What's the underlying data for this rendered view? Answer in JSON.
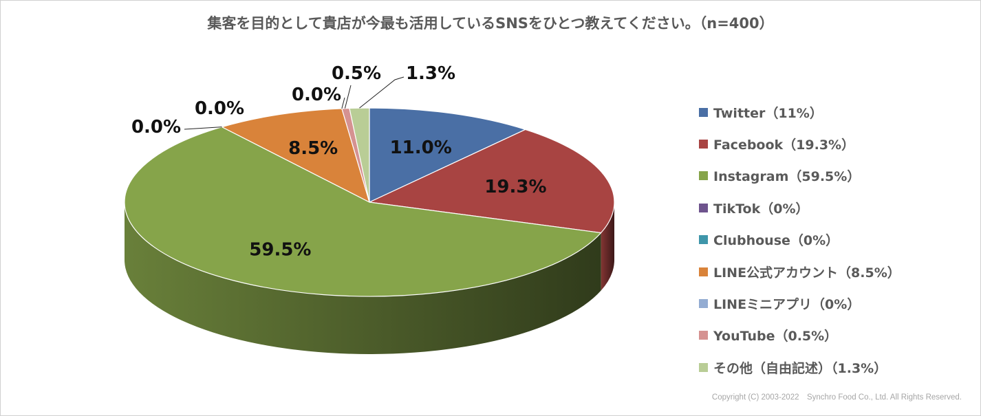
{
  "chart_data": {
    "type": "pie",
    "title": "集客を目的として貴店が今最も活用しているSNSをひとつ教えてください。（n=400）",
    "slices": [
      {
        "legend": "Twitter（11%）",
        "value": 11.0,
        "label": "11.0%",
        "color": "#4a6fa5"
      },
      {
        "legend": "Facebook（19.3%）",
        "value": 19.3,
        "label": "19.3%",
        "color": "#a84442"
      },
      {
        "legend": "Instagram（59.5%）",
        "value": 59.5,
        "label": "59.5%",
        "color": "#86a44a"
      },
      {
        "legend": "TikTok（0%）",
        "value": 0.0,
        "label": "0.0%",
        "color": "#6e548d"
      },
      {
        "legend": "Clubhouse（0%）",
        "value": 0.0,
        "label": "0.0%",
        "color": "#3f96aa"
      },
      {
        "legend": "LINE公式アカウント（8.5%）",
        "value": 8.5,
        "label": "8.5%",
        "color": "#d9833a"
      },
      {
        "legend": "LINEミニアプリ（0%）",
        "value": 0.0,
        "label": "0.0%",
        "color": "#93acd2"
      },
      {
        "legend": "YouTube（0.5%）",
        "value": 0.5,
        "label": "0.5%",
        "color": "#d59291"
      },
      {
        "legend": "その他（自由記述）（1.3%）",
        "value": 1.3,
        "label": "1.3%",
        "color": "#b9cd96"
      }
    ],
    "legend_position": "right"
  },
  "copyright": "Copyright (C) 2003-2022　Synchro Food Co., Ltd. All Rights Reserved."
}
